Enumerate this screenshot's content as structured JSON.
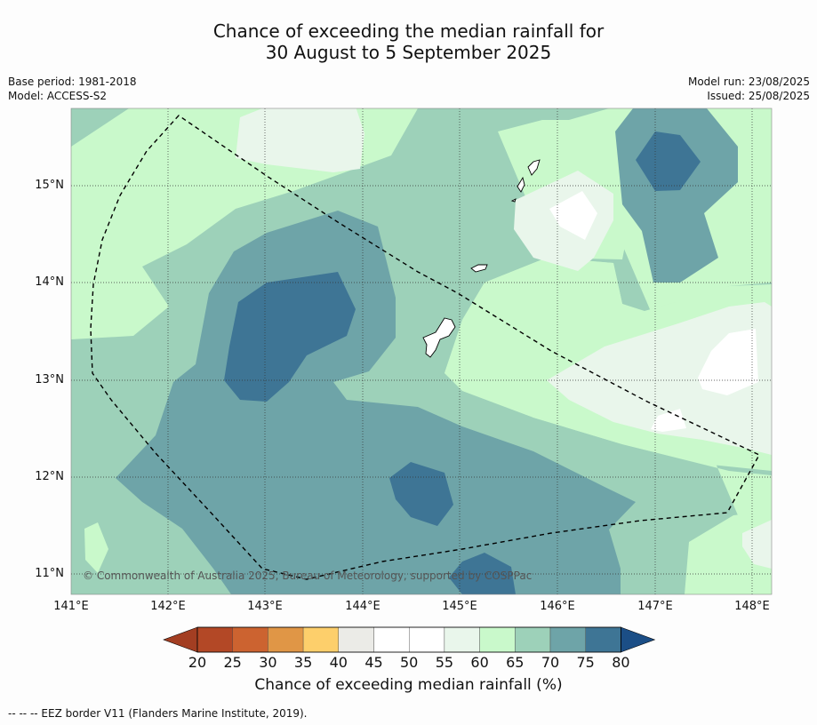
{
  "header": {
    "title_line1": "Chance of exceeding the median rainfall for",
    "title_line2": "30 August to 5 September 2025",
    "base_period": "Base period: 1981-2018",
    "model": "Model: ACCESS-S2",
    "model_run": "Model run: 23/08/2025",
    "issued": "Issued: 25/08/2025"
  },
  "map": {
    "lon_ticks": [
      "141°E",
      "142°E",
      "143°E",
      "144°E",
      "145°E",
      "146°E",
      "147°E",
      "148°E"
    ],
    "lat_ticks": [
      "15°N",
      "14°N",
      "13°N",
      "12°N",
      "11°N"
    ],
    "copyright": "© Commonwealth of Australia 2025, Bureau of Meteorology, supported by COSPPac",
    "extent": {
      "lon": [
        141.0,
        148.2
      ],
      "lat": [
        10.8,
        15.8
      ]
    },
    "colors": {
      "c60_65": "#c9f9cb",
      "c65_70": "#9dd1b9",
      "c70_75": "#6ea4a8",
      "c75_80": "#3e7595",
      "c55_60": "#e9f6eb",
      "c50_55": "#ffffff",
      "border": "#000000"
    }
  },
  "colorbar": {
    "ticks": [
      "20",
      "25",
      "30",
      "35",
      "40",
      "45",
      "50",
      "55",
      "60",
      "65",
      "70",
      "75",
      "80"
    ],
    "colors": [
      "#b34826",
      "#cc6330",
      "#e09646",
      "#fdcf6b",
      "#ebebe7",
      "#ffffff",
      "#ffffff",
      "#e9f6eb",
      "#c9f9cb",
      "#9dd1b9",
      "#6ea4a8",
      "#3e7595"
    ],
    "under_color": "#a33e22",
    "over_color": "#1b4e86",
    "label": "Chance of exceeding median rainfall (%)"
  },
  "footer": "--  --  -- EEZ border V11 (Flanders Marine Institute, 2019)."
}
